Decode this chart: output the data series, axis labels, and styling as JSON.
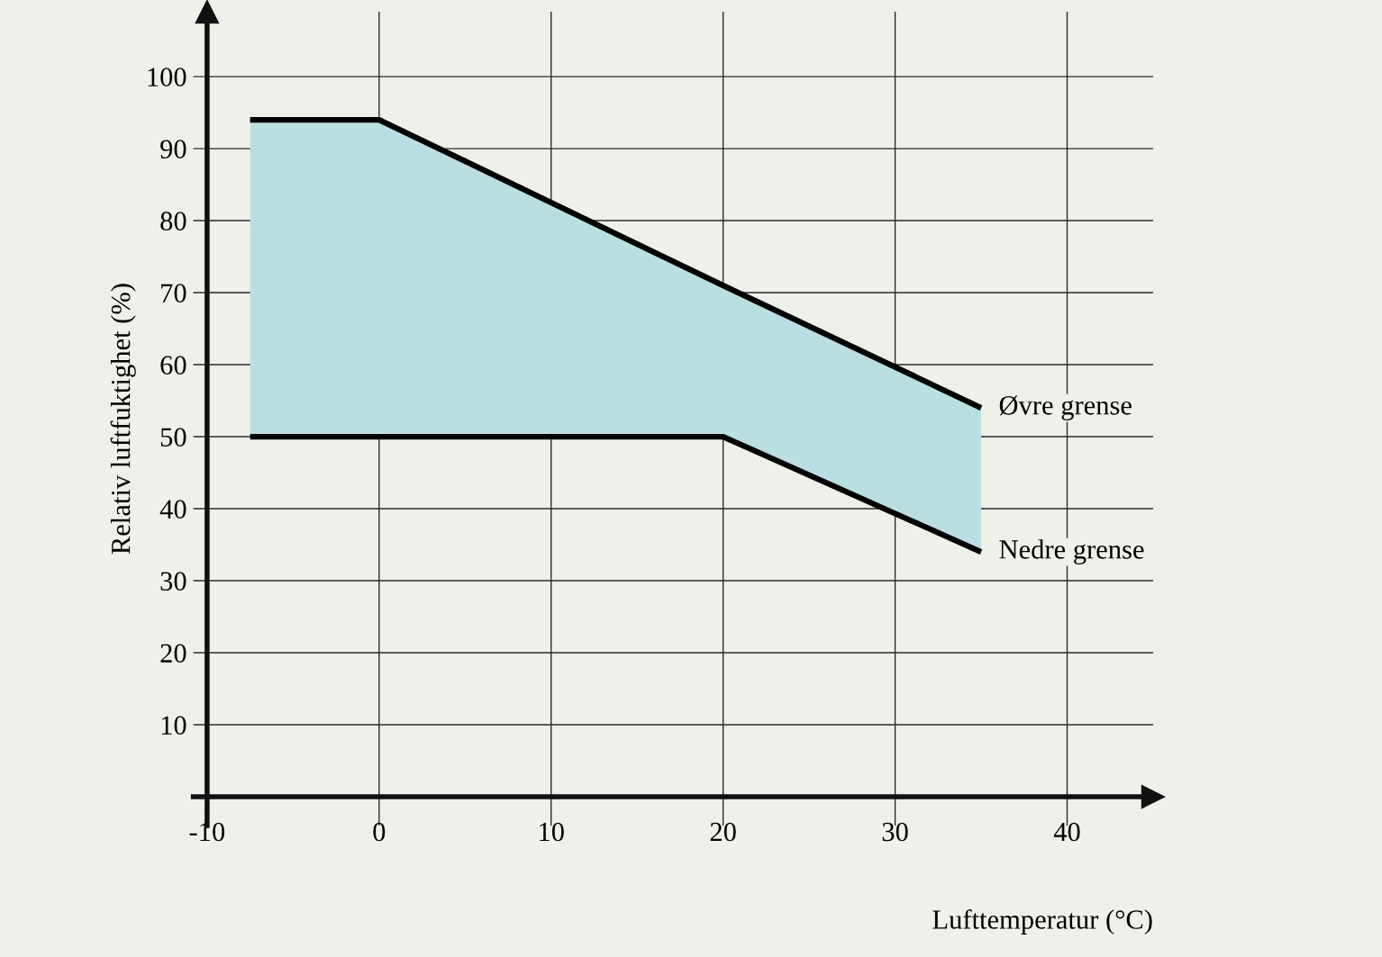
{
  "chart_data": {
    "type": "line",
    "xlabel": "Lufttemperatur (°C)",
    "ylabel": "Relativ luftfuktighet (%)",
    "x": [
      -7.5,
      0,
      20,
      35
    ],
    "series": [
      {
        "name": "Øvre grense",
        "color": "#000000",
        "values": [
          94,
          94,
          71,
          54
        ],
        "lower": [
          50,
          50,
          50,
          34
        ],
        "upper": [
          94,
          94,
          71,
          54
        ]
      },
      {
        "name": "Nedre grense",
        "color": "#000000",
        "values": [
          50,
          50,
          50,
          34
        ]
      }
    ],
    "xlim": [
      -10.8,
      45
    ],
    "ylim": [
      -4,
      109
    ],
    "xticks": [
      -10,
      0,
      10,
      20,
      30,
      40
    ],
    "yticks": [
      10,
      20,
      30,
      40,
      50,
      60,
      70,
      80,
      90,
      100
    ],
    "grid": true,
    "line_style": "solid",
    "marker": "none"
  }
}
